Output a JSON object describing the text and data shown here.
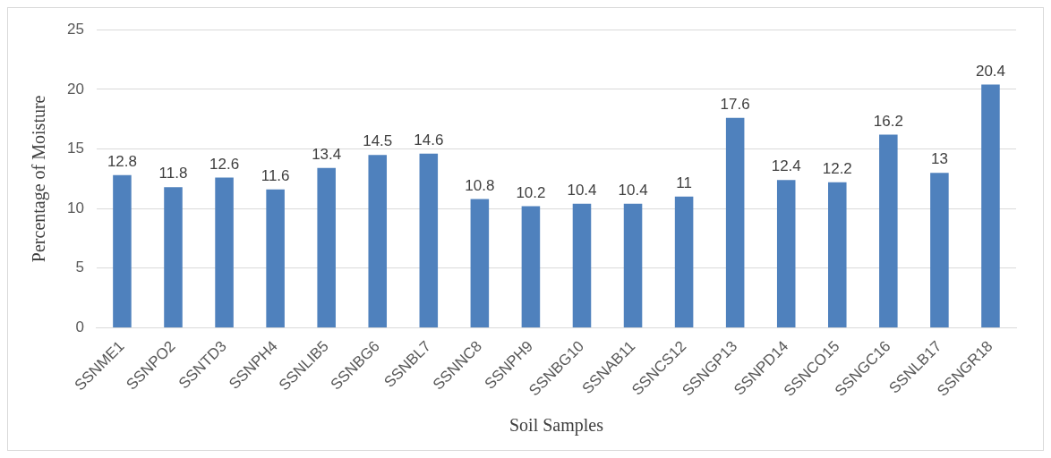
{
  "chart_data": {
    "type": "bar",
    "xlabel": "Soil Samples",
    "ylabel": "Percentage of Moisture",
    "categories": [
      "SSNME1",
      "SSNPO2",
      "SSNTD3",
      "SSNPH4",
      "SSNLIB5",
      "SSNBG6",
      "SSNBL7",
      "SSNNC8",
      "SSNPH9",
      "SSNBG10",
      "SSNAB11",
      "SSNCS12",
      "SSNGP13",
      "SSNPD14",
      "SSNCO15",
      "SSNGC16",
      "SSNLB17",
      "SSNGR18"
    ],
    "values": [
      12.8,
      11.8,
      12.6,
      11.6,
      13.4,
      14.5,
      14.6,
      10.8,
      10.2,
      10.4,
      10.4,
      11,
      17.6,
      12.4,
      12.2,
      16.2,
      13,
      20.4
    ],
    "color": "#4f81bd",
    "ylim": [
      0,
      25
    ],
    "yticks": [
      0,
      5,
      10,
      15,
      20,
      25
    ],
    "grid": "y",
    "data_labels": true,
    "legend": false
  }
}
